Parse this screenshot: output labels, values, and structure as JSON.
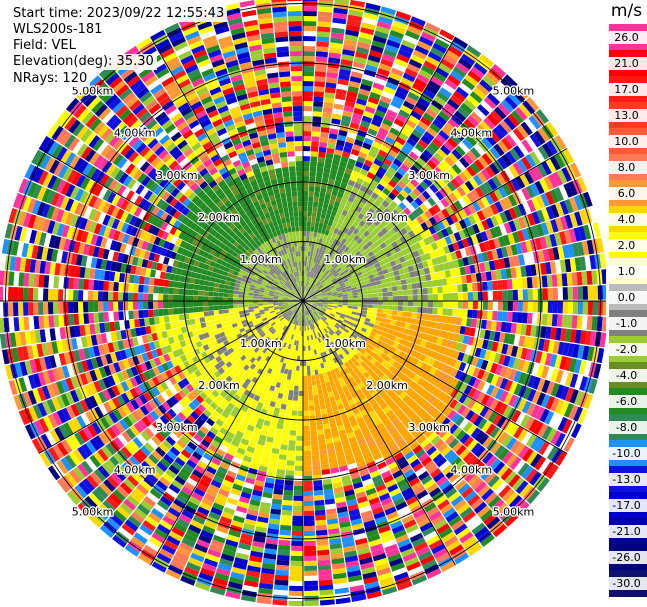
{
  "info": {
    "start_time": "Start time: 2023/09/22 12:55:43",
    "instrument": "WLS200s-181",
    "field": "Field: VEL",
    "elevation": "Elevation(deg): 35.30",
    "nrays": "NRays: 120"
  },
  "chart_data": {
    "type": "heatmap",
    "subtype": "polar-ppi",
    "field": "VEL",
    "unit": "m/s",
    "nrays": 120,
    "elevation_deg": 35.3,
    "range_rings_km": [
      1.0,
      2.0,
      3.0,
      4.0,
      5.0
    ],
    "ring_labels": [
      "1.00km",
      "2.00km",
      "3.00km",
      "4.00km",
      "5.00km"
    ],
    "colorbar": {
      "labels": [
        "26.0",
        "21.0",
        "17.0",
        "13.0",
        "10.0",
        "8.0",
        "6.0",
        "4.0",
        "2.0",
        "1.0",
        "0.0",
        "-1.0",
        "-2.0",
        "-4.0",
        "-6.0",
        "-8.0",
        "-10.0",
        "-13.0",
        "-17.0",
        "-21.0",
        "-26.0",
        "-30.0"
      ],
      "colors": [
        "#ff3399",
        "#ff0000",
        "#ff1a1a",
        "#ff3b1f",
        "#ff5a36",
        "#ff7a55",
        "#ff9933",
        "#ffd700",
        "#ffff00",
        "#ffffcc",
        "#bbbbbb",
        "#808080",
        "#9acd32",
        "#6b8e23",
        "#228b22",
        "#2e8b57",
        "#1e90ff",
        "#1010e0",
        "#0000cd",
        "#0000a0",
        "#000080",
        "#101070"
      ]
    }
  }
}
